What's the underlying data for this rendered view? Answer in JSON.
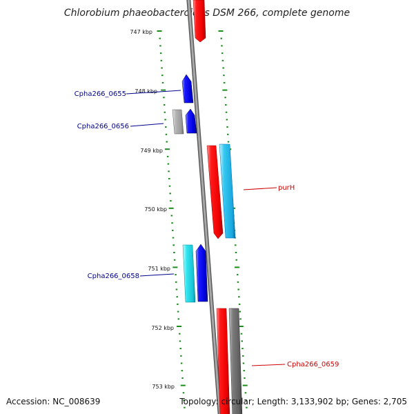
{
  "title": "Chlorobium phaeobacteroides DSM 266, complete genome",
  "colors": {
    "backbone": "#8c8c8c",
    "tick": "#1a8a1a",
    "blue_label": "#00008b",
    "red_label": "#cc0000"
  },
  "ticks": [
    {
      "label": "747 kbp"
    },
    {
      "label": "748 kbp"
    },
    {
      "label": "749 kbp"
    },
    {
      "label": "750 kbp"
    },
    {
      "label": "751 kbp"
    },
    {
      "label": "752 kbp"
    },
    {
      "label": "753 kbp"
    }
  ],
  "genes": [
    {
      "label": "Cpha266_0655",
      "color": "#0000ee",
      "strand": "forward"
    },
    {
      "label": "Cpha266_0656",
      "color": "#0000ee",
      "strand": "forward"
    },
    {
      "label": "purH",
      "color": "#ee0000",
      "strand": "reverse"
    },
    {
      "label": "Cpha266_0658",
      "color": "#0000ee",
      "strand": "forward"
    },
    {
      "label": "Cpha266_0659",
      "color": "#ee0000",
      "strand": "reverse"
    }
  ],
  "footer": {
    "accession": "Accession: NC_008639",
    "topology": "Topology: circular; Length: 3,133,902 bp; Genes: 2,705"
  }
}
